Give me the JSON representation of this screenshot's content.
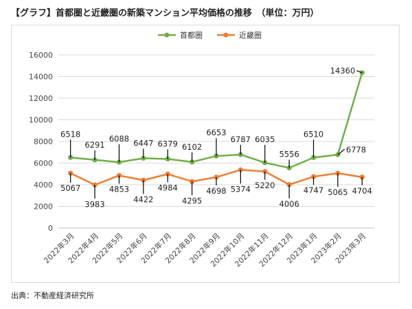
{
  "title": "【グラフ】首都圏と近畿圏の新築マンション平均価格の推移　（単位：万円）",
  "source": "出典：不動産経済研究所",
  "chart_data": {
    "type": "line",
    "categories": [
      "2022年3月",
      "2022年4月",
      "2022年5月",
      "2022年6月",
      "2022年7月",
      "2022年8月",
      "2022年9月",
      "2022年10月",
      "2022年11月",
      "2022年12月",
      "2023年1月",
      "2023年2月",
      "2023年3月"
    ],
    "ylim": [
      0,
      16000
    ],
    "yticks": [
      0,
      2000,
      4000,
      6000,
      8000,
      10000,
      12000,
      14000,
      16000
    ],
    "grid": true,
    "legend_position": "top",
    "series": [
      {
        "name": "首都圏",
        "color": "#70ad47",
        "values": [
          6518,
          6291,
          6088,
          6447,
          6379,
          6102,
          6653,
          6787,
          6035,
          5556,
          6510,
          6778,
          14360
        ]
      },
      {
        "name": "近畿圏",
        "color": "#ed7d31",
        "values": [
          5067,
          3983,
          4853,
          4422,
          4984,
          4295,
          4698,
          5374,
          5220,
          4006,
          4747,
          5065,
          4704
        ]
      }
    ]
  }
}
